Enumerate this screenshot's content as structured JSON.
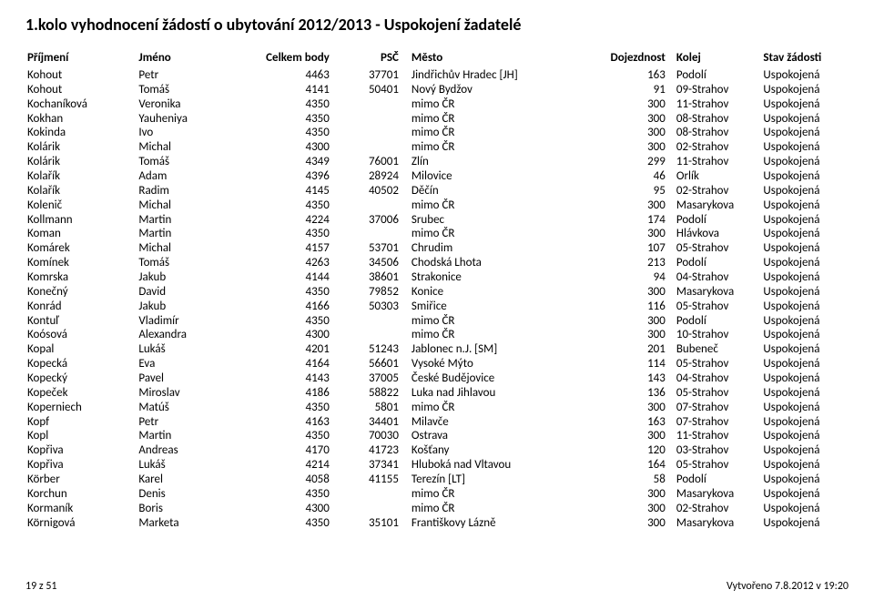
{
  "title": "1.kolo vyhodnocení žádostí o ubytování 2012/2013 - Uspokojení žadatelé",
  "headers": {
    "prijmeni": "Příjmení",
    "jmeno": "Jméno",
    "body": "Celkem body",
    "psc": "PSČ",
    "mesto": "Město",
    "doj": "Dojezdnost",
    "kolej": "Kolej",
    "stav": "Stav žádosti"
  },
  "rows": [
    {
      "p": "Kohout",
      "j": "Petr",
      "b": "4463",
      "psc": "37701",
      "m": "Jindřichův Hradec [JH]",
      "d": "163",
      "k": "Podolí",
      "s": "Uspokojená"
    },
    {
      "p": "Kohout",
      "j": "Tomáš",
      "b": "4141",
      "psc": "50401",
      "m": "Nový Bydžov",
      "d": "91",
      "k": "09-Strahov",
      "s": "Uspokojená"
    },
    {
      "p": "Kochaníková",
      "j": "Veronika",
      "b": "4350",
      "psc": "",
      "m": "mimo ČR",
      "d": "300",
      "k": "11-Strahov",
      "s": "Uspokojená"
    },
    {
      "p": "Kokhan",
      "j": "Yauheniya",
      "b": "4350",
      "psc": "",
      "m": "mimo ČR",
      "d": "300",
      "k": "08-Strahov",
      "s": "Uspokojená"
    },
    {
      "p": "Kokinda",
      "j": "Ivo",
      "b": "4350",
      "psc": "",
      "m": "mimo ČR",
      "d": "300",
      "k": "08-Strahov",
      "s": "Uspokojená"
    },
    {
      "p": "Kolárik",
      "j": "Michal",
      "b": "4300",
      "psc": "",
      "m": "mimo ČR",
      "d": "300",
      "k": "02-Strahov",
      "s": "Uspokojená"
    },
    {
      "p": "Kolárik",
      "j": "Tomáš",
      "b": "4349",
      "psc": "76001",
      "m": "Zlín",
      "d": "299",
      "k": "11-Strahov",
      "s": "Uspokojená"
    },
    {
      "p": "Kolařík",
      "j": "Adam",
      "b": "4396",
      "psc": "28924",
      "m": "Milovice",
      "d": "46",
      "k": "Orlík",
      "s": "Uspokojená"
    },
    {
      "p": "Kolařík",
      "j": "Radim",
      "b": "4145",
      "psc": "40502",
      "m": "Děčín",
      "d": "95",
      "k": "02-Strahov",
      "s": "Uspokojená"
    },
    {
      "p": "Kolenič",
      "j": "Michal",
      "b": "4350",
      "psc": "",
      "m": "mimo ČR",
      "d": "300",
      "k": "Masarykova",
      "s": "Uspokojená"
    },
    {
      "p": "Kollmann",
      "j": "Martin",
      "b": "4224",
      "psc": "37006",
      "m": "Srubec",
      "d": "174",
      "k": "Podolí",
      "s": "Uspokojená"
    },
    {
      "p": "Koman",
      "j": "Martin",
      "b": "4350",
      "psc": "",
      "m": "mimo ČR",
      "d": "300",
      "k": "Hlávkova",
      "s": "Uspokojená"
    },
    {
      "p": "Komárek",
      "j": "Michal",
      "b": "4157",
      "psc": "53701",
      "m": "Chrudim",
      "d": "107",
      "k": "05-Strahov",
      "s": "Uspokojená"
    },
    {
      "p": "Komínek",
      "j": "Tomáš",
      "b": "4263",
      "psc": "34506",
      "m": "Chodská Lhota",
      "d": "213",
      "k": "Podolí",
      "s": "Uspokojená"
    },
    {
      "p": "Komrska",
      "j": "Jakub",
      "b": "4144",
      "psc": "38601",
      "m": "Strakonice",
      "d": "94",
      "k": "04-Strahov",
      "s": "Uspokojená"
    },
    {
      "p": "Konečný",
      "j": "David",
      "b": "4350",
      "psc": "79852",
      "m": "Konice",
      "d": "300",
      "k": "Masarykova",
      "s": "Uspokojená"
    },
    {
      "p": "Konrád",
      "j": "Jakub",
      "b": "4166",
      "psc": "50303",
      "m": "Smiřice",
      "d": "116",
      "k": "05-Strahov",
      "s": "Uspokojená"
    },
    {
      "p": "Kontuľ",
      "j": "Vladimír",
      "b": "4350",
      "psc": "",
      "m": "mimo ČR",
      "d": "300",
      "k": "Podolí",
      "s": "Uspokojená"
    },
    {
      "p": "Koósová",
      "j": "Alexandra",
      "b": "4300",
      "psc": "",
      "m": "mimo ČR",
      "d": "300",
      "k": "10-Strahov",
      "s": "Uspokojená"
    },
    {
      "p": "Kopal",
      "j": "Lukáš",
      "b": "4201",
      "psc": "51243",
      "m": "Jablonec n.J. [SM]",
      "d": "201",
      "k": "Bubeneč",
      "s": "Uspokojená"
    },
    {
      "p": "Kopecká",
      "j": "Eva",
      "b": "4164",
      "psc": "56601",
      "m": "Vysoké Mýto",
      "d": "114",
      "k": "05-Strahov",
      "s": "Uspokojená"
    },
    {
      "p": "Kopecký",
      "j": "Pavel",
      "b": "4143",
      "psc": "37005",
      "m": "České Budějovice",
      "d": "143",
      "k": "04-Strahov",
      "s": "Uspokojená"
    },
    {
      "p": "Kopeček",
      "j": "Miroslav",
      "b": "4186",
      "psc": "58822",
      "m": "Luka nad Jihlavou",
      "d": "136",
      "k": "05-Strahov",
      "s": "Uspokojená"
    },
    {
      "p": "Koperniech",
      "j": "Matúš",
      "b": "4350",
      "psc": "5801",
      "m": "mimo ČR",
      "d": "300",
      "k": "07-Strahov",
      "s": "Uspokojená"
    },
    {
      "p": "Kopf",
      "j": "Petr",
      "b": "4163",
      "psc": "34401",
      "m": "Milavče",
      "d": "163",
      "k": "07-Strahov",
      "s": "Uspokojená"
    },
    {
      "p": "Kopl",
      "j": "Martin",
      "b": "4350",
      "psc": "70030",
      "m": "Ostrava",
      "d": "300",
      "k": "11-Strahov",
      "s": "Uspokojená"
    },
    {
      "p": "Kopřiva",
      "j": "Andreas",
      "b": "4170",
      "psc": "41723",
      "m": "Košťany",
      "d": "120",
      "k": "03-Strahov",
      "s": "Uspokojená"
    },
    {
      "p": "Kopřiva",
      "j": "Lukáš",
      "b": "4214",
      "psc": "37341",
      "m": "Hluboká nad Vltavou",
      "d": "164",
      "k": "05-Strahov",
      "s": "Uspokojená"
    },
    {
      "p": "Körber",
      "j": "Karel",
      "b": "4058",
      "psc": "41155",
      "m": "Terezín [LT]",
      "d": "58",
      "k": "Podolí",
      "s": "Uspokojená"
    },
    {
      "p": "Korchun",
      "j": "Denis",
      "b": "4350",
      "psc": "",
      "m": "mimo ČR",
      "d": "300",
      "k": "Masarykova",
      "s": "Uspokojená"
    },
    {
      "p": "Kormaník",
      "j": "Boris",
      "b": "4300",
      "psc": "",
      "m": "mimo ČR",
      "d": "300",
      "k": "02-Strahov",
      "s": "Uspokojená"
    },
    {
      "p": "Körnigová",
      "j": "Marketa",
      "b": "4350",
      "psc": "35101",
      "m": "Františkovy Lázně",
      "d": "300",
      "k": "Masarykova",
      "s": "Uspokojená"
    }
  ],
  "footer": {
    "left": "19 z 51",
    "right": "Vytvořeno 7.8.2012 v 19:20"
  }
}
